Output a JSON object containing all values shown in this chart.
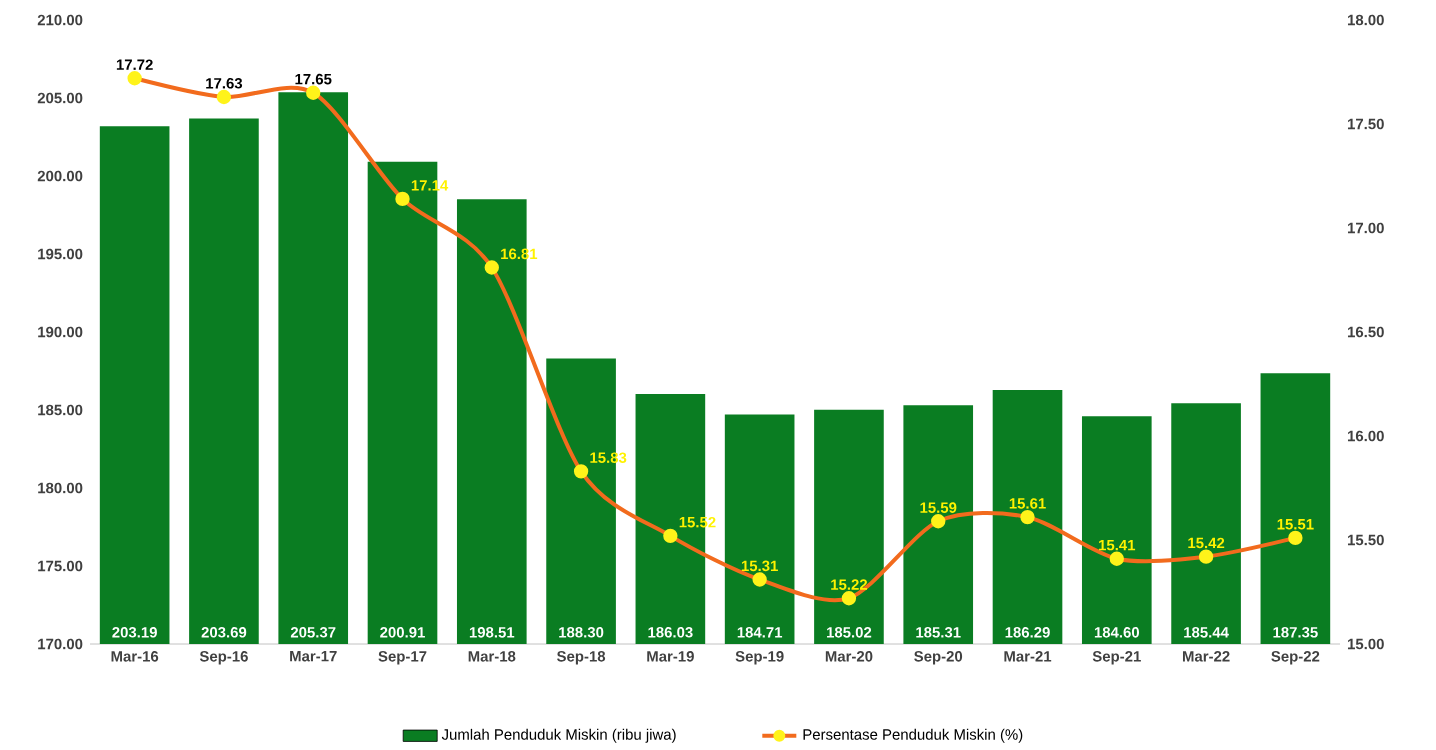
{
  "chart_data": {
    "type": "bar",
    "categories": [
      "Mar-16",
      "Sep-16",
      "Mar-17",
      "Sep-17",
      "Mar-18",
      "Sep-18",
      "Mar-19",
      "Sep-19",
      "Mar-20",
      "Sep-20",
      "Mar-21",
      "Sep-21",
      "Mar-22",
      "Sep-22"
    ],
    "series": [
      {
        "name": "Jumlah Penduduk Miskin (ribu jiwa)",
        "color": "#0a7d22",
        "values": [
          203.19,
          203.69,
          205.37,
          200.91,
          198.51,
          188.3,
          186.03,
          184.71,
          185.02,
          185.31,
          186.29,
          184.6,
          185.44,
          187.35
        ],
        "value_labels": [
          "203.19",
          "203.69",
          "205.37",
          "200.91",
          "198.51",
          "188.30",
          "186.03",
          "184.71",
          "185.02",
          "185.31",
          "186.29",
          "184.60",
          "185.44",
          "187.35"
        ]
      },
      {
        "name": "Persentase Penduduk Miskin (%)",
        "type": "line",
        "axis": "y2",
        "marker": "circle",
        "color": "#f26b1d",
        "values": [
          17.72,
          17.63,
          17.65,
          17.14,
          16.81,
          15.83,
          15.52,
          15.31,
          15.22,
          15.59,
          15.61,
          15.41,
          15.42,
          15.51
        ],
        "value_labels": [
          "17.72",
          "17.63",
          "17.65",
          "17.14",
          "16.81",
          "15.83",
          "15.52",
          "15.31",
          "15.22",
          "15.59",
          "15.61",
          "15.41",
          "15.42",
          "15.51"
        ]
      }
    ],
    "ylim": [
      170,
      210
    ],
    "yticks": [
      {
        "value": 170,
        "label": "170.00"
      },
      {
        "value": 175,
        "label": "175.00"
      },
      {
        "value": 180,
        "label": "180.00"
      },
      {
        "value": 185,
        "label": "185.00"
      },
      {
        "value": 190,
        "label": "190.00"
      },
      {
        "value": 195,
        "label": "195.00"
      },
      {
        "value": 200,
        "label": "200.00"
      },
      {
        "value": 205,
        "label": "205.00"
      },
      {
        "value": 210,
        "label": "210.00"
      }
    ],
    "y2lim": [
      15,
      18
    ],
    "y2ticks": [
      {
        "value": 15,
        "label": "15.00"
      },
      {
        "value": 15.5,
        "label": "15.50"
      },
      {
        "value": 16,
        "label": "16.00"
      },
      {
        "value": 16.5,
        "label": "16.50"
      },
      {
        "value": 17,
        "label": "17.00"
      },
      {
        "value": 17.5,
        "label": "17.50"
      },
      {
        "value": 18,
        "label": "18.00"
      }
    ],
    "legend": "bottom"
  }
}
